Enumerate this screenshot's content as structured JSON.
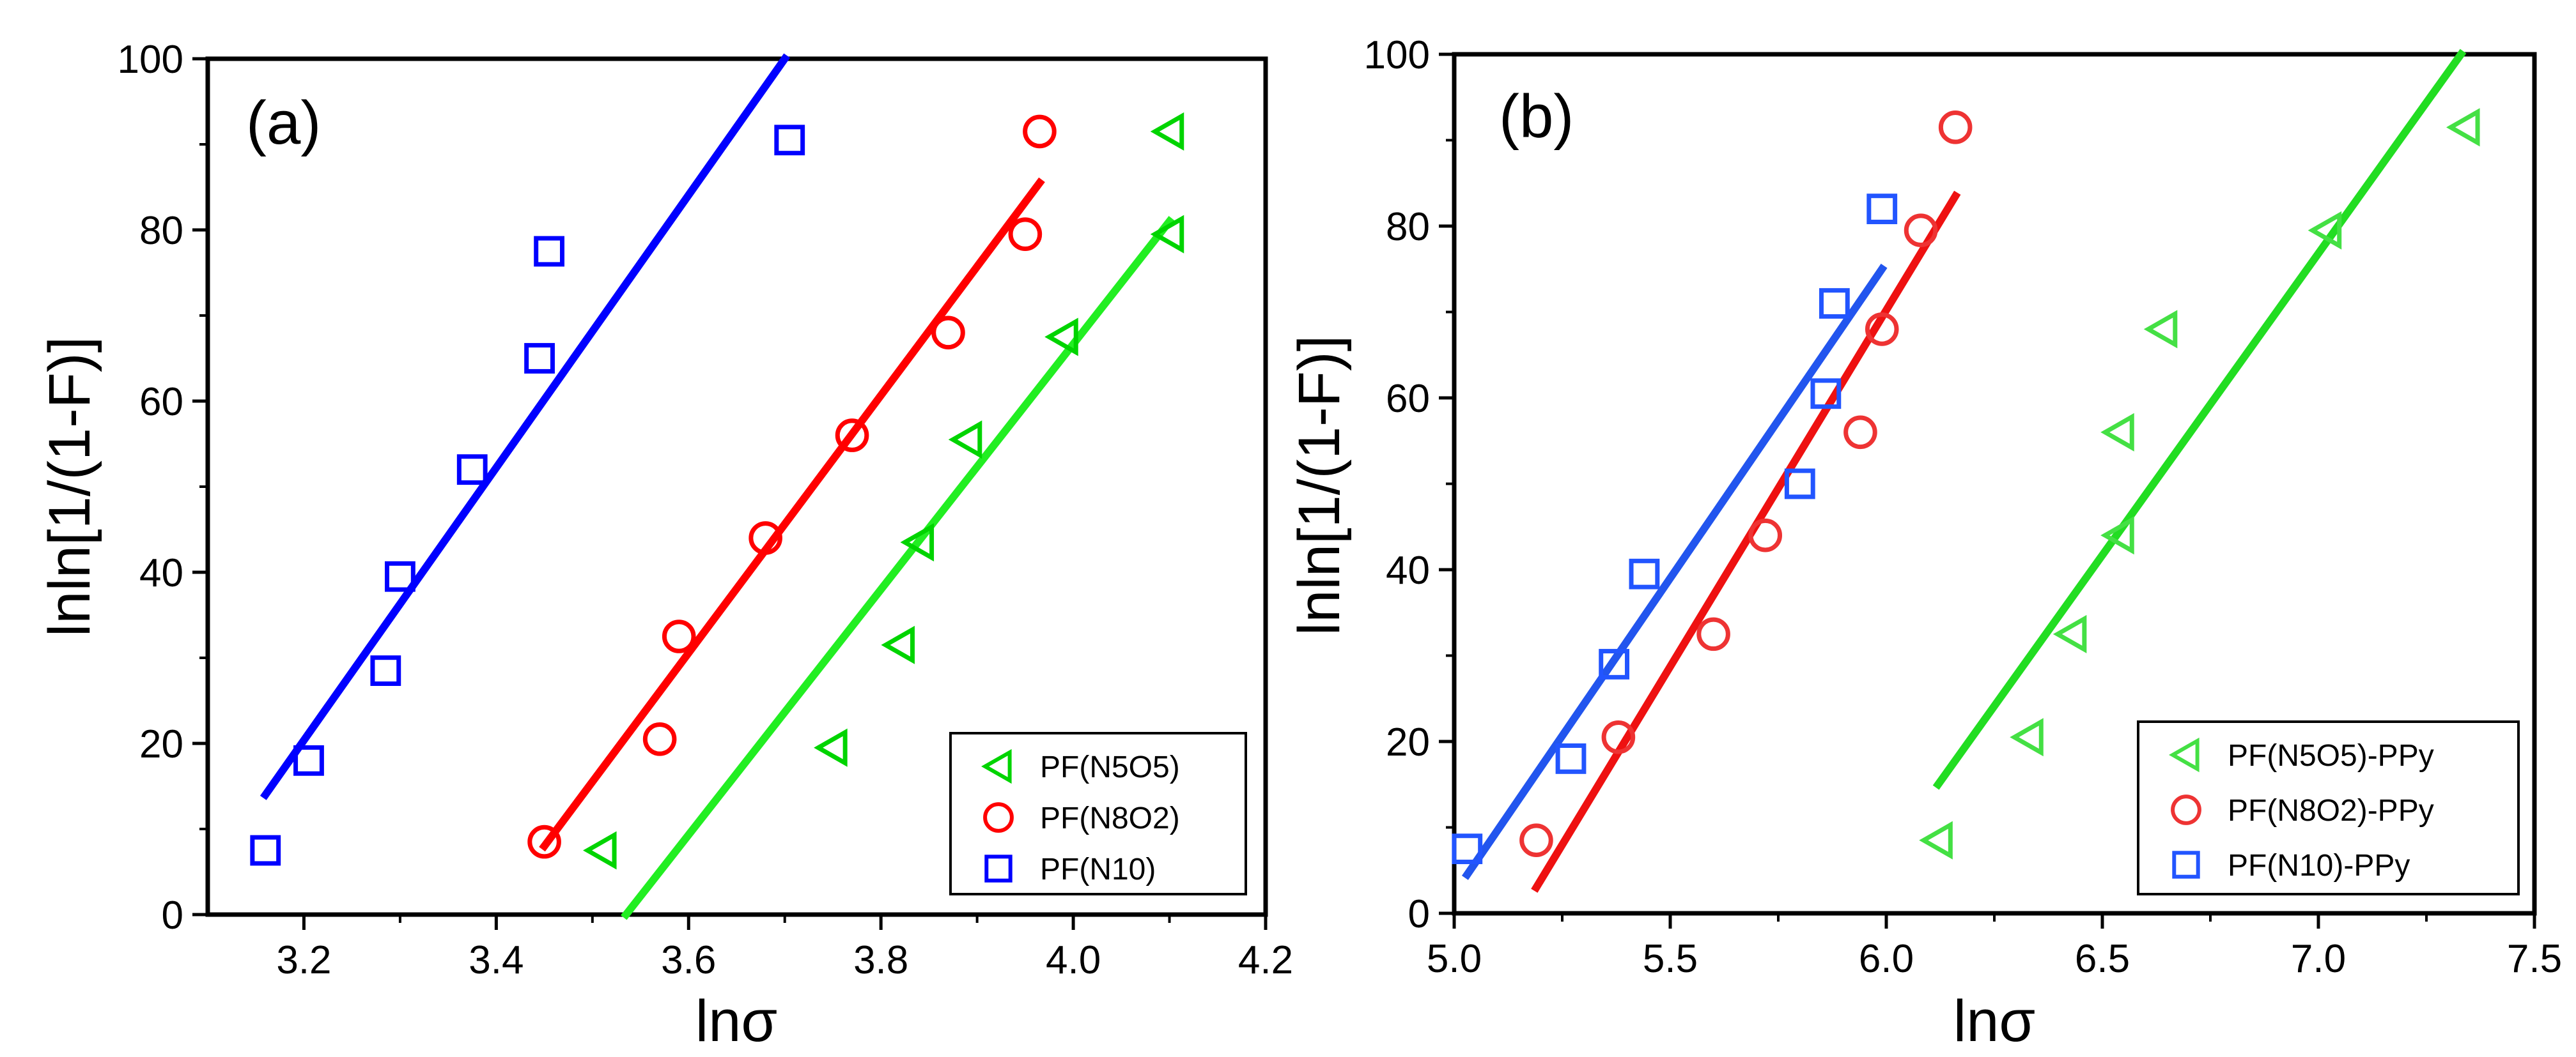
{
  "chart_data": [
    {
      "type": "scatter",
      "panel_label": "(a)",
      "xlabel": "lnσ",
      "ylabel": "lnln[1/(1-F)]",
      "xlim": [
        3.1,
        4.2
      ],
      "ylim": [
        0,
        100
      ],
      "xticks": [
        "3.2",
        "3.4",
        "3.6",
        "3.8",
        "4.0",
        "4.2"
      ],
      "xtick_values": [
        3.2,
        3.4,
        3.6,
        3.8,
        4.0,
        4.2
      ],
      "yticks": [
        "0",
        "20",
        "40",
        "60",
        "80",
        "100"
      ],
      "ytick_values": [
        0,
        20,
        40,
        60,
        80,
        100
      ],
      "legend_position": "bottom-right",
      "series": [
        {
          "name": "PF(N5O5)",
          "marker": "triangle-left",
          "color": "#00d400",
          "line_color": "#22ee22",
          "x": [
            3.51,
            3.75,
            3.82,
            3.84,
            3.89,
            3.99,
            4.1,
            4.1
          ],
          "y": [
            7.5,
            19.5,
            31.5,
            43.5,
            55.5,
            67.5,
            79.5,
            91.5
          ],
          "fit": {
            "x": [
              3.535,
              4.1
            ],
            "y": [
              0,
              81
            ]
          }
        },
        {
          "name": "PF(N8O2)",
          "marker": "circle",
          "color": "#ff0000",
          "line_color": "#ff0000",
          "x": [
            3.45,
            3.57,
            3.59,
            3.68,
            3.77,
            3.87,
            3.95,
            3.965
          ],
          "y": [
            8.5,
            20.5,
            32.5,
            44,
            56,
            68,
            79.5,
            91.5
          ],
          "fit": {
            "x": [
              3.45,
              3.965
            ],
            "y": [
              8,
              85.5
            ]
          }
        },
        {
          "name": "PF(N10)",
          "marker": "square",
          "color": "#0000ff",
          "line_color": "#0000ff",
          "x": [
            3.16,
            3.205,
            3.285,
            3.3,
            3.375,
            3.445,
            3.455,
            3.705
          ],
          "y": [
            7.5,
            18,
            28.5,
            39.5,
            52,
            65,
            77.5,
            90.5
          ],
          "fit": {
            "x": [
              3.16,
              3.7
            ],
            "y": [
              14,
              100
            ]
          }
        }
      ]
    },
    {
      "type": "scatter",
      "panel_label": "(b)",
      "xlabel": "lnσ",
      "ylabel": "lnln[1/(1-F)]",
      "xlim": [
        5.0,
        7.5
      ],
      "ylim": [
        0,
        100
      ],
      "xticks": [
        "5.0",
        "5.5",
        "6.0",
        "6.5",
        "7.0",
        "7.5"
      ],
      "xtick_values": [
        5.0,
        5.5,
        6.0,
        6.5,
        7.0,
        7.5
      ],
      "yticks": [
        "0",
        "20",
        "40",
        "60",
        "80",
        "100"
      ],
      "ytick_values": [
        0,
        20,
        40,
        60,
        80,
        100
      ],
      "legend_position": "bottom-right",
      "series": [
        {
          "name": "PF(N5O5)-PPy",
          "marker": "triangle-left",
          "color": "#44e044",
          "line_color": "#22dd22",
          "x": [
            6.12,
            6.33,
            6.43,
            6.54,
            6.54,
            6.64,
            7.02,
            7.34
          ],
          "y": [
            8.5,
            20.5,
            32.5,
            44,
            56,
            68,
            79.5,
            91.5
          ],
          "fit": {
            "x": [
              6.12,
              7.33
            ],
            "y": [
              15,
              100
            ]
          }
        },
        {
          "name": "PF(N8O2)-PPy",
          "marker": "circle",
          "color": "#ee3333",
          "line_color": "#ee1111",
          "x": [
            5.19,
            5.38,
            5.6,
            5.72,
            5.94,
            5.99,
            6.08,
            6.16
          ],
          "y": [
            8.5,
            20.5,
            32.5,
            44,
            56,
            68,
            79.5,
            91.5
          ],
          "fit": {
            "x": [
              5.19,
              6.16
            ],
            "y": [
              3,
              83.5
            ]
          }
        },
        {
          "name": "PF(N10)-PPy",
          "marker": "square",
          "color": "#2255ff",
          "line_color": "#2255ee",
          "x": [
            5.03,
            5.27,
            5.37,
            5.44,
            5.8,
            5.86,
            5.88,
            5.99
          ],
          "y": [
            7.5,
            18,
            29,
            39.5,
            50,
            60.5,
            71,
            82
          ],
          "fit": {
            "x": [
              5.03,
              5.99
            ],
            "y": [
              4.5,
              75
            ]
          }
        }
      ]
    }
  ]
}
